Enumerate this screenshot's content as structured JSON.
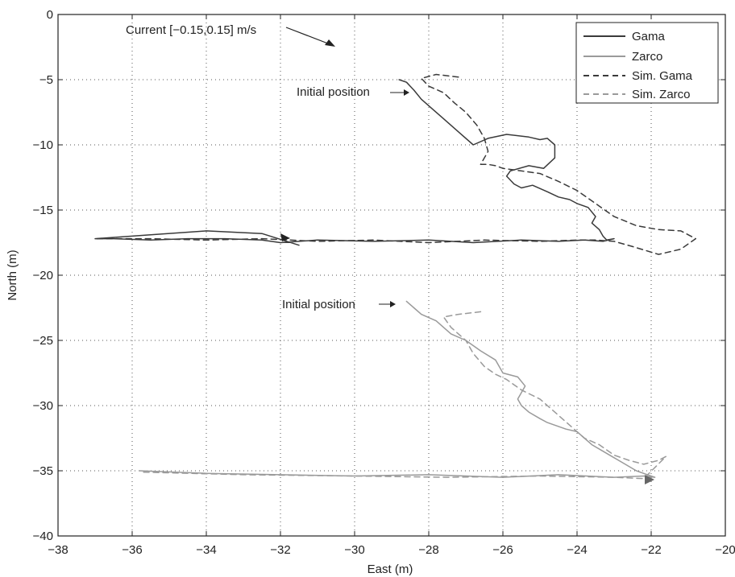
{
  "chart_data": {
    "type": "line",
    "xlabel": "East (m)",
    "ylabel": "North (m)",
    "xlim": [
      -38,
      -20
    ],
    "ylim": [
      -40,
      0
    ],
    "xticks": [
      -38,
      -36,
      -34,
      -32,
      -30,
      -28,
      -26,
      -24,
      -22,
      -20
    ],
    "yticks": [
      0,
      -5,
      -10,
      -15,
      -20,
      -25,
      -30,
      -35,
      -40
    ],
    "grid": true,
    "legend_position": "top-right",
    "colors": {
      "gama": "#3a3a3a",
      "zarco": "#9a9a9a"
    },
    "series": [
      {
        "name": "Gama",
        "style": "solid",
        "color": "#3a3a3a",
        "x": [
          -28.8,
          -28.6,
          -28.4,
          -28.2,
          -28.0,
          -27.6,
          -27.2,
          -26.8,
          -26.4,
          -25.9,
          -25.3,
          -25.0,
          -24.8,
          -24.6,
          -24.6,
          -24.9,
          -25.3,
          -25.8,
          -25.9,
          -25.7,
          -25.5,
          -25.2,
          -24.8,
          -24.5,
          -24.2,
          -24.0,
          -23.7,
          -23.5,
          -23.6,
          -23.4,
          -23.3,
          -23.2,
          -23.0,
          -23.3,
          -23.8,
          -24.5,
          -25.5,
          -26.8,
          -28.0,
          -29.5,
          -31.0,
          -32.0,
          -32.5,
          -33.5,
          -34.5,
          -35.5,
          -36.5,
          -37.0,
          -35.5,
          -34.0,
          -32.5,
          -31.5
        ],
        "y": [
          -5.0,
          -5.2,
          -5.8,
          -6.5,
          -7.0,
          -8.0,
          -9.0,
          -10.0,
          -9.5,
          -9.2,
          -9.4,
          -9.6,
          -9.5,
          -10.0,
          -11.0,
          -11.8,
          -11.6,
          -12.0,
          -12.4,
          -13.0,
          -13.3,
          -13.1,
          -13.6,
          -14.0,
          -14.2,
          -14.5,
          -14.8,
          -15.5,
          -16.0,
          -16.5,
          -17.0,
          -17.3,
          -17.2,
          -17.4,
          -17.3,
          -17.4,
          -17.3,
          -17.5,
          -17.3,
          -17.4,
          -17.3,
          -17.5,
          -17.3,
          -17.2,
          -17.2,
          -17.3,
          -17.2,
          -17.2,
          -16.9,
          -16.6,
          -16.8,
          -17.7
        ]
      },
      {
        "name": "Zarco",
        "style": "solid",
        "color": "#9a9a9a",
        "x": [
          -28.6,
          -28.4,
          -28.2,
          -27.8,
          -27.4,
          -27.0,
          -26.6,
          -26.2,
          -26.0,
          -25.6,
          -25.4,
          -25.6,
          -25.5,
          -25.3,
          -25.0,
          -24.8,
          -24.6,
          -24.3,
          -24.0,
          -23.8,
          -23.6,
          -23.3,
          -23.0,
          -22.7,
          -22.4,
          -22.1,
          -21.9,
          -22.2,
          -23.0,
          -24.5,
          -26.0,
          -28.0,
          -30.0,
          -32.0,
          -34.0,
          -35.8
        ],
        "y": [
          -22.0,
          -22.5,
          -23.0,
          -23.5,
          -24.5,
          -25.0,
          -25.8,
          -26.5,
          -27.5,
          -27.8,
          -28.5,
          -29.5,
          -30.0,
          -30.5,
          -31.0,
          -31.3,
          -31.5,
          -31.8,
          -32.0,
          -32.5,
          -33.0,
          -33.5,
          -34.0,
          -34.5,
          -35.0,
          -35.3,
          -35.5,
          -35.4,
          -35.5,
          -35.3,
          -35.5,
          -35.3,
          -35.4,
          -35.3,
          -35.2,
          -35.0
        ]
      },
      {
        "name": "Sim. Gama",
        "style": "dashed",
        "color": "#3a3a3a",
        "x": [
          -27.2,
          -27.8,
          -28.2,
          -28.0,
          -27.6,
          -27.3,
          -27.0,
          -26.7,
          -26.5,
          -26.4,
          -26.6,
          -26.4,
          -26.2,
          -26.0,
          -25.5,
          -25.0,
          -24.5,
          -24.0,
          -23.5,
          -23.0,
          -22.4,
          -21.8,
          -21.2,
          -20.8,
          -21.2,
          -21.8,
          -22.5,
          -23.0,
          -23.5,
          -24.0,
          -25.0,
          -26.5,
          -28.0,
          -29.5,
          -31.0,
          -32.5,
          -34.0,
          -35.5,
          -37.0
        ],
        "y": [
          -4.8,
          -4.6,
          -4.9,
          -5.5,
          -6.0,
          -6.8,
          -7.5,
          -8.5,
          -9.5,
          -10.5,
          -11.5,
          -11.5,
          -11.6,
          -11.8,
          -12.0,
          -12.2,
          -12.8,
          -13.5,
          -14.5,
          -15.5,
          -16.2,
          -16.5,
          -16.6,
          -17.2,
          -18.0,
          -18.4,
          -17.8,
          -17.4,
          -17.3,
          -17.3,
          -17.4,
          -17.3,
          -17.5,
          -17.3,
          -17.4,
          -17.2,
          -17.3,
          -17.2,
          -17.2
        ]
      },
      {
        "name": "Sim. Zarco",
        "style": "dashed",
        "color": "#9a9a9a",
        "x": [
          -26.6,
          -27.2,
          -27.6,
          -27.4,
          -27.0,
          -26.8,
          -26.5,
          -26.2,
          -25.9,
          -25.5,
          -25.0,
          -24.6,
          -24.2,
          -23.8,
          -23.4,
          -23.0,
          -22.6,
          -22.2,
          -21.8,
          -21.6,
          -22.2,
          -23.0,
          -25.0,
          -27.5,
          -30.0,
          -33.0,
          -35.8
        ],
        "y": [
          -22.8,
          -23.0,
          -23.2,
          -24.0,
          -25.0,
          -26.0,
          -27.0,
          -27.6,
          -28.0,
          -28.8,
          -29.5,
          -30.5,
          -31.5,
          -32.5,
          -33.0,
          -33.8,
          -34.2,
          -34.5,
          -34.2,
          -33.9,
          -35.6,
          -35.5,
          -35.4,
          -35.5,
          -35.4,
          -35.3,
          -35.1
        ]
      }
    ],
    "annotations": {
      "current": "Current [−0.15,0.15] m/s",
      "initial_top": "Initial position",
      "initial_bottom": "Initial position"
    }
  }
}
